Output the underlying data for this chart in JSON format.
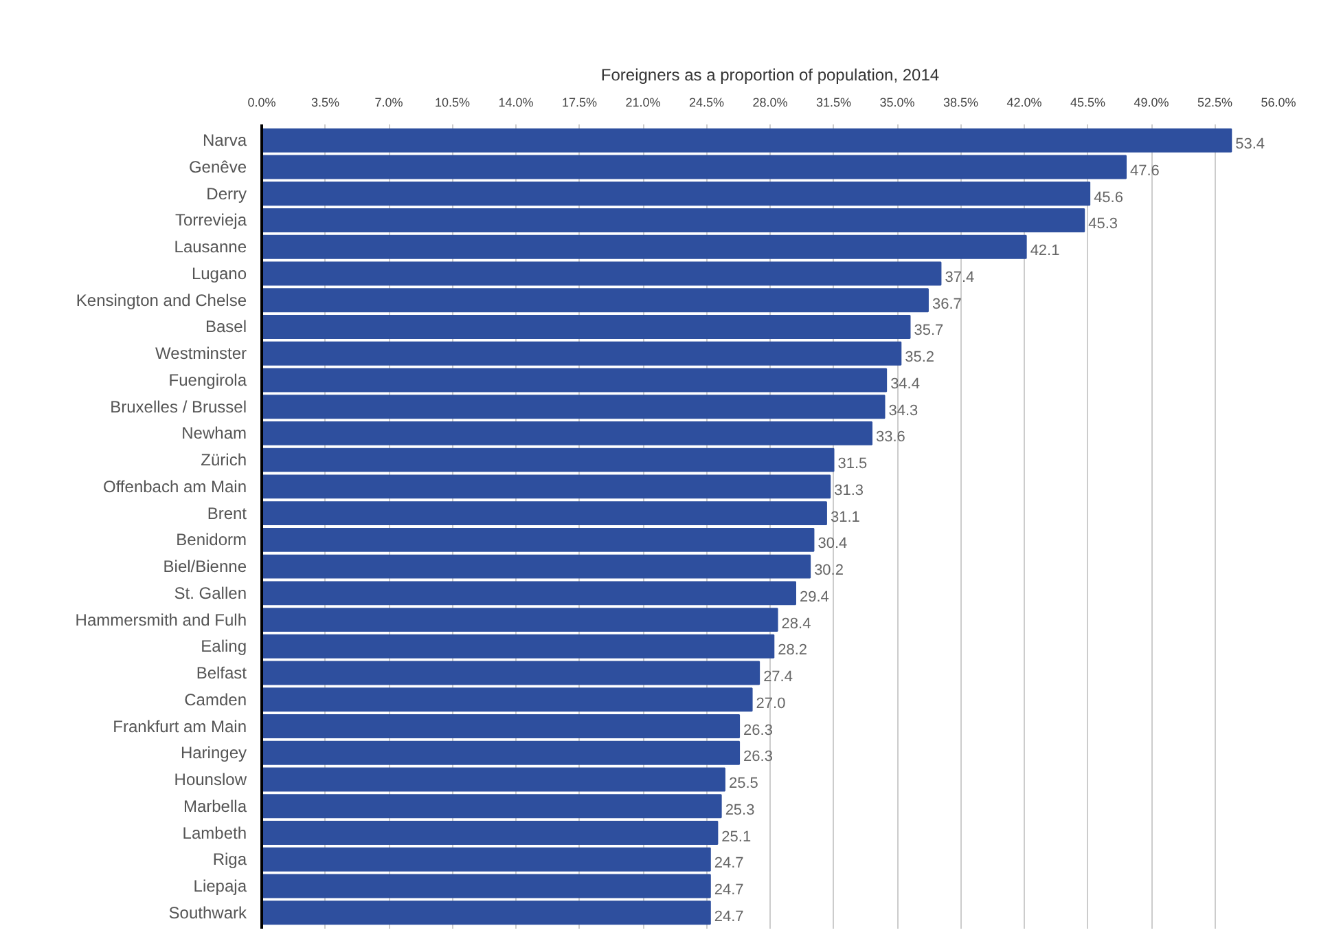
{
  "chart_data": {
    "type": "bar",
    "orientation": "horizontal",
    "title": "Foreigners as a proportion of population, 2014",
    "categories": [
      "Narva",
      "Genêve",
      "Derry",
      "Torrevieja",
      "Lausanne",
      "Lugano",
      "Kensington and Chelse",
      "Basel",
      "Westminster",
      "Fuengirola",
      "Bruxelles / Brussel",
      "Newham",
      "Zürich",
      "Offenbach am Main",
      "Brent",
      "Benidorm",
      "Biel/Bienne",
      "St. Gallen",
      "Hammersmith and Fulh",
      "Ealing",
      "Belfast",
      "Camden",
      "Frankfurt am Main",
      "Haringey",
      "Hounslow",
      "Marbella",
      "Lambeth",
      "Riga",
      "Liepaja",
      "Southwark"
    ],
    "values": [
      53.4,
      47.6,
      45.6,
      45.3,
      42.1,
      37.4,
      36.7,
      35.7,
      35.2,
      34.4,
      34.3,
      33.6,
      31.5,
      31.3,
      31.1,
      30.4,
      30.2,
      29.4,
      28.4,
      28.2,
      27.4,
      27.0,
      26.3,
      26.3,
      25.5,
      25.3,
      25.1,
      24.7,
      24.7,
      24.7
    ],
    "value_labels": [
      "53.4",
      "47.6",
      "45.6",
      "45.3",
      "42.1",
      "37.4",
      "36.7",
      "35.7",
      "35.2",
      "34.4",
      "34.3",
      "33.6",
      "31.5",
      "31.3",
      "31.1",
      "30.4",
      "30.2",
      "29.4",
      "28.4",
      "28.2",
      "27.4",
      "27.0",
      "26.3",
      "26.3",
      "25.5",
      "25.3",
      "25.1",
      "24.7",
      "24.7",
      "24.7"
    ],
    "color": "#2e4f9e",
    "xlim": [
      0,
      56
    ],
    "xticks": [
      {
        "value": 0,
        "label": "0.0%"
      },
      {
        "value": 3.5,
        "label": "3.5%"
      },
      {
        "value": 7,
        "label": "7.0%"
      },
      {
        "value": 10.5,
        "label": "10.5%"
      },
      {
        "value": 14,
        "label": "14.0%"
      },
      {
        "value": 17.5,
        "label": "17.5%"
      },
      {
        "value": 21,
        "label": "21.0%"
      },
      {
        "value": 24.5,
        "label": "24.5%"
      },
      {
        "value": 28,
        "label": "28.0%"
      },
      {
        "value": 31.5,
        "label": "31.5%"
      },
      {
        "value": 35,
        "label": "35.0%"
      },
      {
        "value": 38.5,
        "label": "38.5%"
      },
      {
        "value": 42,
        "label": "42.0%"
      },
      {
        "value": 45.5,
        "label": "45.5%"
      },
      {
        "value": 49,
        "label": "49.0%"
      },
      {
        "value": 52.5,
        "label": "52.5%"
      },
      {
        "value": 56,
        "label": "56.0%"
      }
    ],
    "grid": "x"
  }
}
